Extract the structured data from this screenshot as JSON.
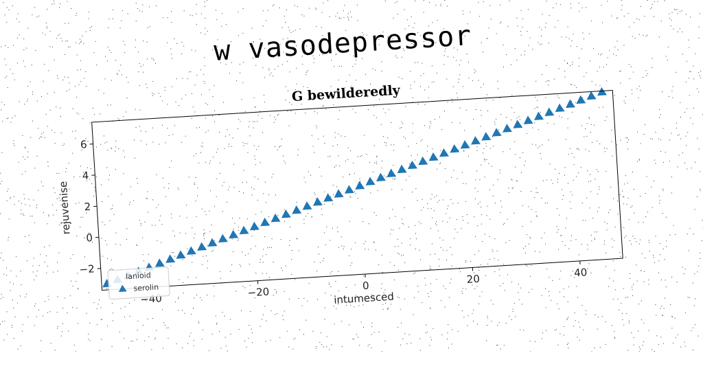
{
  "figure_title": "w vasodepressor",
  "chart_data": {
    "type": "scatter",
    "title": "G bewilderedly",
    "xlabel": "intumesced",
    "ylabel": "rejuvenise",
    "xlim": [
      -49,
      48
    ],
    "ylim": [
      -3.4,
      7.4
    ],
    "xticks": [
      -40,
      -20,
      0,
      20,
      40
    ],
    "yticks": [
      -2,
      0,
      2,
      4,
      6
    ],
    "grid": false,
    "legend": {
      "title": "lanioid",
      "placement": "bottom-left",
      "entries": [
        "serolin"
      ]
    },
    "marker": "triangle",
    "color": "#1f77b4",
    "series": [
      {
        "name": "serolin",
        "x": [
          -48,
          -46,
          -44,
          -42,
          -40,
          -38,
          -36,
          -34,
          -32,
          -30,
          -28,
          -26,
          -24,
          -22,
          -20,
          -18,
          -16,
          -14,
          -12,
          -10,
          -8,
          -6,
          -4,
          -2,
          0,
          2,
          4,
          6,
          8,
          10,
          12,
          14,
          16,
          18,
          20,
          22,
          24,
          26,
          28,
          30,
          32,
          34,
          36,
          38,
          40,
          42,
          44,
          46
        ],
        "y": [
          -3.0,
          -2.78,
          -2.56,
          -2.34,
          -2.12,
          -1.9,
          -1.68,
          -1.46,
          -1.24,
          -1.02,
          -0.8,
          -0.58,
          -0.36,
          -0.14,
          0.08,
          0.3,
          0.52,
          0.74,
          0.96,
          1.18,
          1.4,
          1.62,
          1.84,
          2.06,
          2.28,
          2.5,
          2.72,
          2.94,
          3.16,
          3.38,
          3.6,
          3.82,
          4.04,
          4.26,
          4.48,
          4.7,
          4.92,
          5.14,
          5.36,
          5.58,
          5.8,
          6.02,
          6.24,
          6.46,
          6.68,
          6.9,
          7.12,
          7.34
        ]
      }
    ]
  }
}
